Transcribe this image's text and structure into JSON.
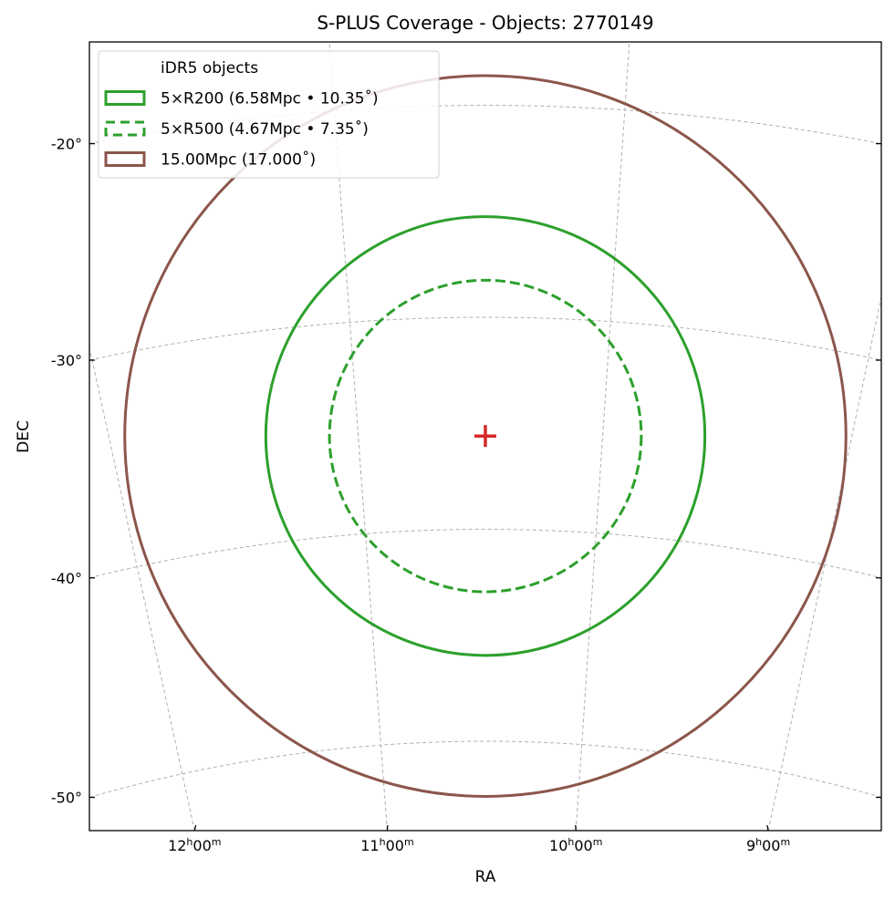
{
  "chart_data": {
    "type": "scatter",
    "title": "S-PLUS Coverage - Objects: 2770149",
    "xlabel": "RA",
    "ylabel": "DEC",
    "projection": "sky (gnomonic-like), parallels as arcs, meridians converging to pole",
    "grid": true,
    "grid_style": "dashed gray",
    "x_ticks": [
      {
        "ra_hours": 12,
        "h": "12",
        "m": "00"
      },
      {
        "ra_hours": 11,
        "h": "11",
        "m": "00"
      },
      {
        "ra_hours": 10,
        "h": "10",
        "m": "00"
      },
      {
        "ra_hours": 9,
        "h": "9",
        "m": "00"
      }
    ],
    "y_ticks": [
      {
        "dec": -20,
        "label": "-20°"
      },
      {
        "dec": -30,
        "label": "-30°"
      },
      {
        "dec": -40,
        "label": "-40°"
      },
      {
        "dec": -50,
        "label": "-50°"
      }
    ],
    "center": {
      "ra_hours": 10.48,
      "dec": -35.6,
      "marker": "plus",
      "color": "#d62728"
    },
    "circles": [
      {
        "name": "5×R200 (6.58Mpc • 10.35˚)",
        "radius_deg": 10.35,
        "color": "#2ca02c",
        "style": "solid"
      },
      {
        "name": "5×R500 (4.67Mpc • 7.35˚)",
        "radius_deg": 7.35,
        "color": "#2ca02c",
        "style": "dashed"
      },
      {
        "name": "15.00Mpc (17.000˚)",
        "radius_deg": 17.0,
        "color": "#8c564b",
        "style": "solid"
      }
    ],
    "legend": {
      "placement": "top-left",
      "entries": [
        {
          "label": "iDR5 objects",
          "swatch": "none"
        },
        {
          "label": "5×R200 (6.58Mpc • 10.35˚)",
          "swatch": "solid",
          "color": "#2ca02c"
        },
        {
          "label": "5×R500 (4.67Mpc • 7.35˚)",
          "swatch": "dashed",
          "color": "#2ca02c"
        },
        {
          "label": "15.00Mpc (17.000˚)",
          "swatch": "solid",
          "color": "#8c564b"
        }
      ]
    }
  }
}
